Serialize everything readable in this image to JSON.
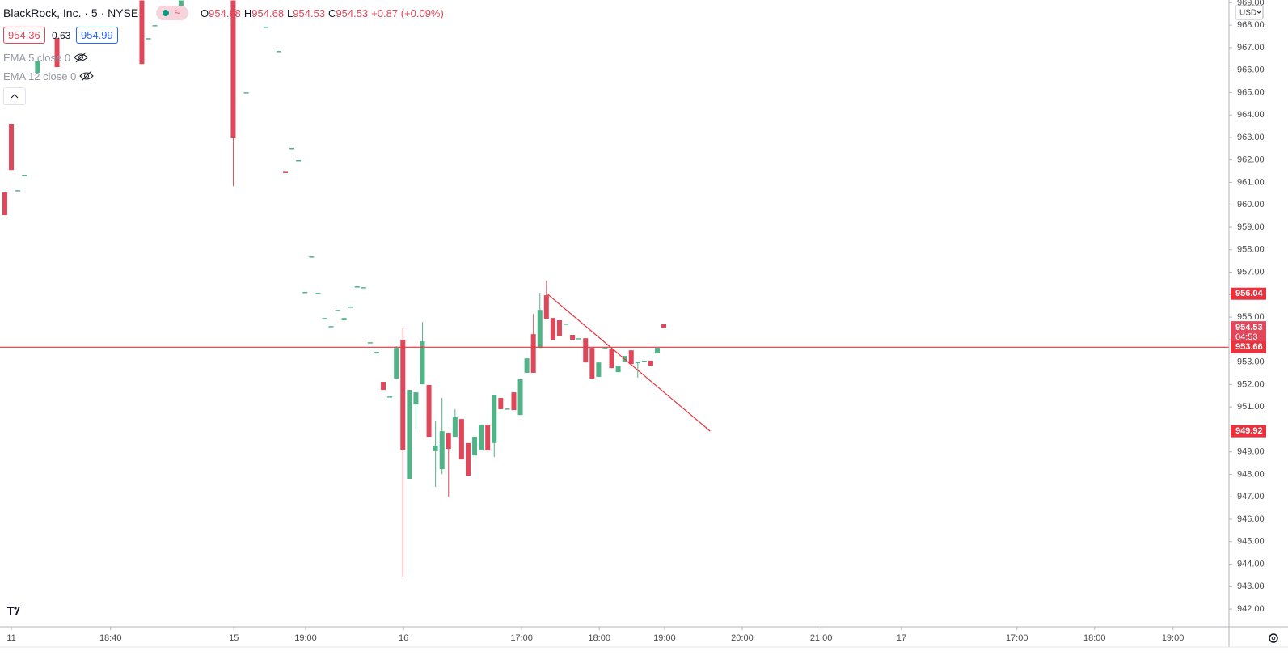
{
  "header": {
    "symbol": "BlackRock, Inc. · 5 · NYSE",
    "ohlc": [
      {
        "key": "O",
        "value": "954.68"
      },
      {
        "key": "H",
        "value": "954.68"
      },
      {
        "key": "L",
        "value": "954.53"
      },
      {
        "key": "C",
        "value": "954.53"
      }
    ],
    "change": "+0.87 (+0.09%)",
    "bid": "954.36",
    "spread": "0.63",
    "ask": "954.99",
    "indicators": [
      "EMA 5 close 0",
      "EMA 12 close 0"
    ],
    "currency": "USD"
  },
  "chart_data": {
    "type": "candlestick",
    "x": [
      0,
      1,
      2,
      3,
      5,
      8,
      21,
      22,
      23,
      27,
      35,
      37,
      40,
      42,
      43,
      44,
      45,
      46,
      47,
      48,
      49,
      50,
      51,
      52,
      53,
      54,
      55,
      56,
      57,
      58,
      59,
      60,
      61,
      62,
      63,
      64,
      65,
      66,
      67,
      68,
      69,
      70,
      71,
      72,
      73,
      74,
      75,
      76,
      77,
      78,
      79,
      80,
      81,
      82,
      83,
      84,
      85,
      86,
      87,
      88,
      89,
      90,
      91,
      92,
      93,
      94,
      95,
      96,
      97,
      98,
      99,
      100,
      101
    ],
    "open": [
      960.55,
      963.61,
      960.65,
      961.34,
      965.88,
      967.42,
      969.1,
      967.42,
      968.0,
      968.83,
      969.1,
      965.01,
      967.93,
      966.85,
      961.47,
      962.53,
      961.99,
      956.12,
      957.7,
      956.08,
      954.96,
      954.6,
      955.32,
      954.86,
      955.47,
      956.37,
      956.33,
      953.88,
      953.45,
      952.12,
      951.47,
      952.26,
      953.99,
      947.8,
      951.11,
      952.01,
      951.98,
      949.03,
      948.23,
      949.85,
      949.67,
      950.46,
      949.39,
      948.84,
      949.06,
      950.21,
      949.39,
      951.4,
      950.93,
      951.65,
      950.64,
      952.52,
      954.24,
      953.63,
      955.97,
      954.96,
      954.86,
      954.71,
      954.21,
      954.06,
      954.06,
      953.63,
      952.34,
      953.63,
      953.56,
      952.55,
      953.02,
      953.52,
      952.95,
      953.06,
      953.06,
      953.38,
      954.68
    ],
    "high": [
      960.55,
      963.61,
      960.65,
      961.34,
      966.42,
      967.42,
      969.1,
      967.42,
      968.0,
      969.1,
      969.1,
      965.01,
      967.93,
      966.85,
      961.47,
      962.53,
      961.99,
      956.12,
      957.7,
      956.08,
      954.96,
      954.6,
      955.32,
      954.96,
      955.47,
      956.37,
      956.33,
      953.88,
      953.45,
      952.12,
      951.47,
      953.7,
      954.5,
      951.76,
      951.65,
      954.78,
      951.98,
      950.39,
      951.4,
      949.85,
      950.9,
      950.46,
      949.39,
      949.67,
      950.21,
      950.21,
      951.54,
      951.4,
      950.93,
      951.65,
      952.23,
      953.16,
      955.14,
      956.08,
      956.62,
      954.96,
      954.86,
      954.71,
      954.21,
      954.06,
      954.06,
      953.63,
      952.98,
      953.63,
      953.56,
      952.84,
      953.27,
      953.52,
      953.02,
      953.06,
      953.06,
      953.63,
      954.68
    ],
    "low": [
      959.54,
      961.55,
      960.65,
      961.34,
      965.88,
      966.13,
      966.27,
      967.42,
      968.0,
      968.83,
      960.83,
      965.01,
      967.93,
      966.85,
      961.45,
      962.53,
      961.99,
      956.12,
      957.7,
      956.08,
      954.96,
      954.6,
      955.32,
      954.86,
      955.47,
      956.37,
      956.33,
      953.88,
      953.45,
      951.76,
      951.47,
      952.26,
      943.44,
      947.8,
      950.03,
      952.01,
      949.67,
      947.44,
      948.0,
      947.0,
      949.67,
      948.66,
      947.94,
      948.84,
      949.06,
      949.06,
      948.77,
      950.9,
      950.93,
      950.86,
      950.64,
      952.52,
      952.52,
      953.63,
      954.93,
      953.99,
      954.14,
      954.71,
      953.99,
      954.06,
      952.98,
      952.26,
      952.34,
      953.63,
      952.73,
      952.55,
      953.02,
      952.91,
      952.3,
      953.06,
      952.84,
      953.38,
      954.53
    ],
    "close": [
      959.54,
      961.55,
      960.65,
      961.34,
      966.42,
      966.13,
      966.27,
      967.42,
      968.0,
      969.1,
      962.96,
      965.01,
      967.93,
      966.85,
      961.45,
      962.53,
      961.99,
      956.12,
      957.7,
      956.08,
      954.96,
      954.6,
      955.32,
      954.96,
      955.47,
      956.37,
      956.33,
      953.88,
      953.45,
      951.76,
      951.47,
      953.63,
      949.09,
      951.76,
      951.65,
      953.92,
      949.67,
      949.28,
      949.92,
      949.13,
      950.57,
      948.66,
      947.94,
      949.67,
      950.21,
      949.06,
      951.54,
      950.9,
      950.93,
      950.86,
      952.23,
      953.16,
      952.52,
      955.32,
      954.93,
      953.99,
      954.14,
      954.71,
      953.99,
      954.06,
      952.98,
      952.26,
      952.98,
      953.63,
      952.73,
      952.84,
      953.27,
      952.91,
      953.02,
      953.06,
      952.84,
      953.63,
      954.53
    ],
    "up_color": "#52b389",
    "down_color": "#e0475a",
    "xlim": [
      -0.74,
      187.6
    ],
    "xticks": [
      {
        "value": 1.0,
        "label": "11"
      },
      {
        "value": 16.2,
        "label": "18:40"
      },
      {
        "value": 35.1,
        "label": "15"
      },
      {
        "value": 46.1,
        "label": "19:00"
      },
      {
        "value": 61.1,
        "label": "16"
      },
      {
        "value": 79.2,
        "label": "17:00"
      },
      {
        "value": 91.1,
        "label": "18:00"
      },
      {
        "value": 101.1,
        "label": "19:00"
      },
      {
        "value": 113.0,
        "label": "20:00"
      },
      {
        "value": 125.1,
        "label": "21:00"
      },
      {
        "value": 137.4,
        "label": "17"
      },
      {
        "value": 155.1,
        "label": "17:00"
      },
      {
        "value": 167.0,
        "label": "18:00"
      },
      {
        "value": 179.0,
        "label": "19:00"
      }
    ],
    "ylim": [
      941.21,
      969.12
    ],
    "yticks": [
      {
        "value": 942,
        "label": "942.00"
      },
      {
        "value": 943,
        "label": "943.00"
      },
      {
        "value": 944,
        "label": "944.00"
      },
      {
        "value": 945,
        "label": "945.00"
      },
      {
        "value": 946,
        "label": "946.00"
      },
      {
        "value": 947,
        "label": "947.00"
      },
      {
        "value": 948,
        "label": "948.00"
      },
      {
        "value": 949,
        "label": "949.00"
      },
      {
        "value": 950,
        "label": "950.00"
      },
      {
        "value": 951,
        "label": "951.00"
      },
      {
        "value": 952,
        "label": "952.00"
      },
      {
        "value": 953,
        "label": "953.00"
      },
      {
        "value": 954,
        "label": "954.00"
      },
      {
        "value": 955,
        "label": "955.00"
      },
      {
        "value": 956,
        "label": "956.00"
      },
      {
        "value": 957,
        "label": "957.00"
      },
      {
        "value": 958,
        "label": "958.00"
      },
      {
        "value": 959,
        "label": "959.00"
      },
      {
        "value": 960,
        "label": "960.00"
      },
      {
        "value": 961,
        "label": "961.00"
      },
      {
        "value": 962,
        "label": "962.00"
      },
      {
        "value": 963,
        "label": "963.00"
      },
      {
        "value": 964,
        "label": "964.00"
      },
      {
        "value": 965,
        "label": "965.00"
      },
      {
        "value": 966,
        "label": "966.00"
      },
      {
        "value": 967,
        "label": "967.00"
      },
      {
        "value": 968,
        "label": "968.00"
      },
      {
        "value": 969,
        "label": "969.00"
      }
    ],
    "price_line": 953.66,
    "price_line_color": "#e8333f",
    "last_price": 954.53,
    "countdown": "04:53",
    "trendline": {
      "x": [
        83.1,
        108.1
      ],
      "y": [
        956.04,
        949.92
      ],
      "color": "#e8333f"
    }
  }
}
